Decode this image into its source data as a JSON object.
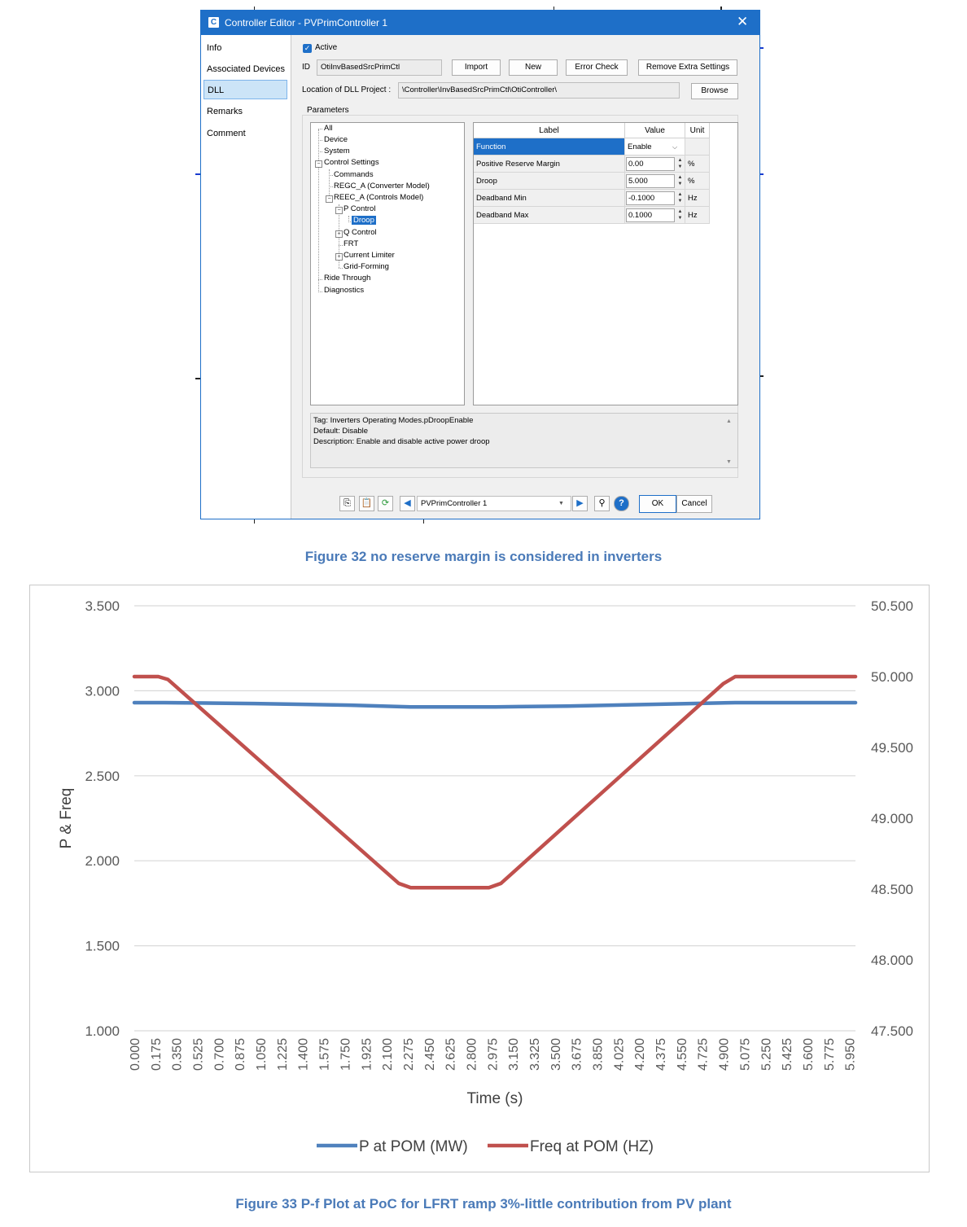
{
  "dialog": {
    "title": "Controller Editor - PVPrimController 1",
    "title_icon": "C",
    "close_glyph": "✕",
    "nav": [
      "Info",
      "Associated Devices",
      "DLL",
      "Remarks",
      "Comment"
    ],
    "selected_nav": "DLL",
    "active_label": "Active",
    "active_checked": true,
    "id_label": "ID",
    "id_value": "OtiInvBasedSrcPrimCtl",
    "buttons": {
      "import": "Import",
      "new": "New",
      "error_check": "Error Check",
      "remove_extra": "Remove Extra Settings",
      "browse": "Browse",
      "ok": "OK",
      "cancel": "Cancel"
    },
    "location_label": "Location of DLL Project :",
    "location_value": "\\Controller\\InvBasedSrcPrimCtl\\OtiController\\",
    "parameters_label": "Parameters",
    "tree": [
      {
        "label": "All"
      },
      {
        "label": "Device"
      },
      {
        "label": "System"
      },
      {
        "label": "Control Settings"
      },
      {
        "label": "Commands"
      },
      {
        "label": "REGC_A (Converter Model)"
      },
      {
        "label": "REEC_A (Controls Model)"
      },
      {
        "label": "P Control"
      },
      {
        "label": "Droop"
      },
      {
        "label": "Q Control"
      },
      {
        "label": "FRT"
      },
      {
        "label": "Current Limiter"
      },
      {
        "label": "Grid-Forming"
      },
      {
        "label": "Ride Through"
      },
      {
        "label": "Diagnostics"
      }
    ],
    "grid": {
      "headers": [
        "Label",
        "Value",
        "Unit"
      ],
      "rows": [
        {
          "label": "Function",
          "value": "Enable",
          "unit": ""
        },
        {
          "label": "Positive Reserve Margin",
          "value": "0.00",
          "unit": "%"
        },
        {
          "label": "Droop",
          "value": "5.000",
          "unit": "%"
        },
        {
          "label": "Deadband Min",
          "value": "-0.1000",
          "unit": "Hz"
        },
        {
          "label": "Deadband Max",
          "value": "0.1000",
          "unit": "Hz"
        }
      ]
    },
    "description": {
      "tag": "Tag: Inverters Operating Modes.pDroopEnable",
      "default": "Default: Disable",
      "desc": "Description: Enable and disable active power droop"
    },
    "bottom_select": "PVPrimController 1",
    "icons": [
      "copy-icon",
      "paste-icon",
      "refresh-icon",
      "prev-icon",
      "next-icon",
      "find-icon",
      "help-icon"
    ],
    "accent": "#1e6fc8"
  },
  "caption1": "Figure 32 no reserve margin is considered in inverters",
  "caption2": "Figure 33 P-f Plot at PoC for LFRT ramp 3%-little contribution from PV plant",
  "chart_data": {
    "type": "line",
    "title": "",
    "xlabel": "Time (s)",
    "ylabel": "P & Freq",
    "x_ticks": [
      "0.000",
      "0.175",
      "0.350",
      "0.525",
      "0.700",
      "0.875",
      "1.050",
      "1.225",
      "1.400",
      "1.575",
      "1.750",
      "1.925",
      "2.100",
      "2.275",
      "2.450",
      "2.625",
      "2.800",
      "2.975",
      "3.150",
      "3.325",
      "3.500",
      "3.675",
      "3.850",
      "4.025",
      "4.200",
      "4.375",
      "4.550",
      "4.725",
      "4.900",
      "5.075",
      "5.250",
      "5.425",
      "5.600",
      "5.775",
      "5.950"
    ],
    "ylim_left": [
      1.0,
      3.5
    ],
    "yticks_left": [
      "3.500",
      "3.000",
      "2.500",
      "2.000",
      "1.500",
      "1.000"
    ],
    "ylim_right": [
      47.5,
      50.5
    ],
    "yticks_right": [
      "50.500",
      "50.000",
      "49.500",
      "49.000",
      "48.500",
      "48.000",
      "47.500"
    ],
    "xlim": [
      0,
      6.0
    ],
    "grid": true,
    "legend_position": "bottom",
    "series": [
      {
        "name": "P at POM (MW)",
        "axis": "left",
        "color": "#4f81bd",
        "points": [
          [
            0,
            2.93
          ],
          [
            0.25,
            2.93
          ],
          [
            1.0,
            2.925
          ],
          [
            1.8,
            2.915
          ],
          [
            2.3,
            2.905
          ],
          [
            3.0,
            2.905
          ],
          [
            3.6,
            2.91
          ],
          [
            4.3,
            2.92
          ],
          [
            5.0,
            2.93
          ],
          [
            6.0,
            2.93
          ]
        ]
      },
      {
        "name": "Freq at POM (HZ)",
        "axis": "right",
        "color": "#c0504d",
        "points": [
          [
            0,
            50.0
          ],
          [
            0.2,
            50.0
          ],
          [
            0.28,
            49.98
          ],
          [
            2.2,
            48.54
          ],
          [
            2.3,
            48.51
          ],
          [
            2.95,
            48.51
          ],
          [
            3.05,
            48.54
          ],
          [
            4.9,
            49.95
          ],
          [
            5.0,
            50.0
          ],
          [
            6.0,
            50.0
          ]
        ]
      }
    ]
  }
}
